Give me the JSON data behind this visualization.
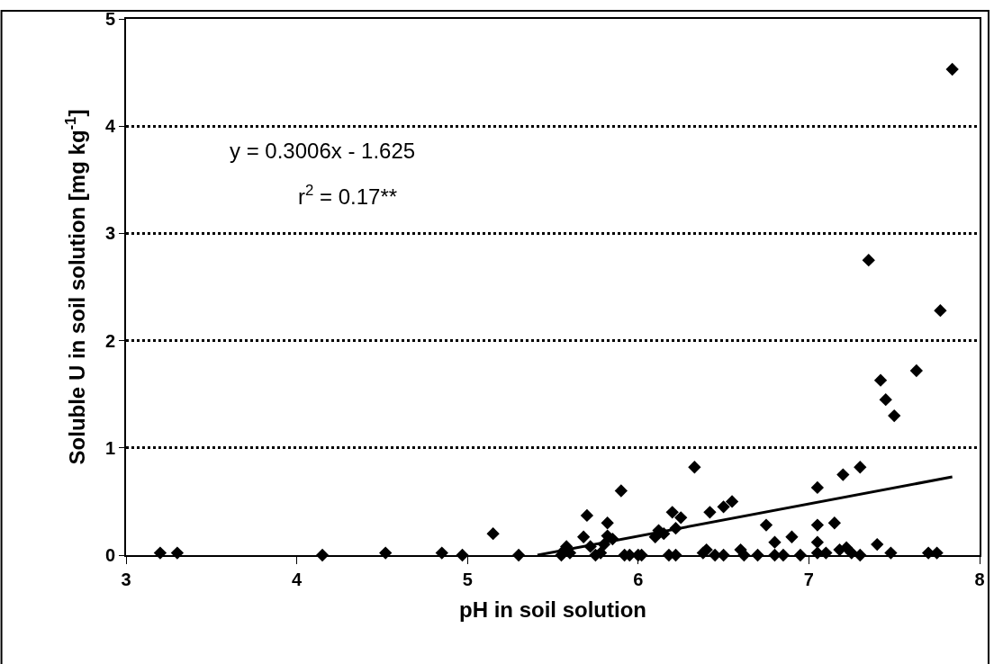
{
  "chart_data": {
    "type": "scatter",
    "xlabel": "pH in soil solution",
    "ylabel": "Soluble U in soil solution [mg kg$^{-1}$]",
    "xlim": [
      3,
      8
    ],
    "xticks": [
      3,
      4,
      5,
      6,
      7,
      8
    ],
    "ylim": [
      0,
      5
    ],
    "yticks": [
      0,
      1,
      2,
      3,
      4,
      5
    ],
    "grid": "y",
    "annotations": [
      "y = 0.3006x - 1.625",
      "r$^{2}$ = 0.17**"
    ],
    "series": [
      {
        "marker": "diamond",
        "color": "#000000",
        "x": [
          3.2,
          3.3,
          4.15,
          4.52,
          4.85,
          4.97,
          5.15,
          5.3,
          5.55,
          5.57,
          5.58,
          5.6,
          5.68,
          5.7,
          5.72,
          5.75,
          5.78,
          5.8,
          5.82,
          5.82,
          5.85,
          5.9,
          5.92,
          5.95,
          6.0,
          6.02,
          6.1,
          6.12,
          6.15,
          6.18,
          6.2,
          6.22,
          6.25,
          6.22,
          6.33,
          6.38,
          6.4,
          6.42,
          6.45,
          6.5,
          6.5,
          6.55,
          6.6,
          6.62,
          6.7,
          6.75,
          6.8,
          6.8,
          6.85,
          6.9,
          6.95,
          7.05,
          7.05,
          7.05,
          7.05,
          7.1,
          7.15,
          7.18,
          7.2,
          7.22,
          7.25,
          7.3,
          7.3,
          7.35,
          7.4,
          7.42,
          7.45,
          7.48,
          7.5,
          7.63,
          7.7,
          7.75,
          7.77,
          7.84
        ],
        "values": [
          0.02,
          0.02,
          0.0,
          0.02,
          0.02,
          0.0,
          0.2,
          0.0,
          0.0,
          0.05,
          0.08,
          0.02,
          0.17,
          0.37,
          0.08,
          0.0,
          0.02,
          0.1,
          0.3,
          0.18,
          0.15,
          0.6,
          0.0,
          0.0,
          0.0,
          0.0,
          0.17,
          0.23,
          0.2,
          0.0,
          0.4,
          0.25,
          0.35,
          0.0,
          0.82,
          0.02,
          0.05,
          0.4,
          0.0,
          0.45,
          0.0,
          0.5,
          0.05,
          0.0,
          0.0,
          0.28,
          0.12,
          0.0,
          0.0,
          0.17,
          0.0,
          0.63,
          0.28,
          0.12,
          0.02,
          0.02,
          0.3,
          0.05,
          0.75,
          0.07,
          0.02,
          0.82,
          0.0,
          2.75,
          0.1,
          1.63,
          1.45,
          0.02,
          1.3,
          1.72,
          0.02,
          0.02,
          2.28,
          4.53
        ]
      },
      {
        "type": "line",
        "color": "#000000",
        "x": [
          5.41,
          7.84
        ],
        "values": [
          0.0,
          0.73
        ]
      }
    ]
  }
}
